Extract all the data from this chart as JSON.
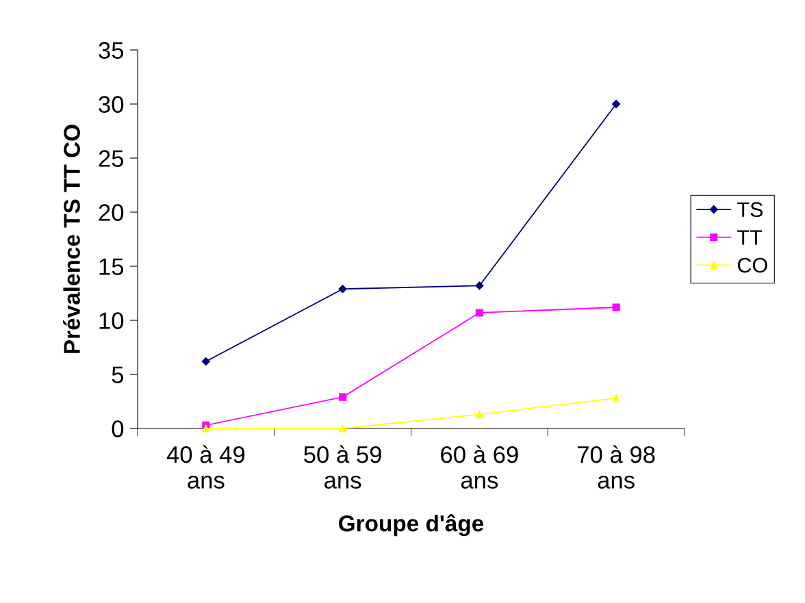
{
  "chart_data": {
    "type": "line",
    "xlabel": "Groupe d'âge",
    "ylabel": "Prévalence TS TT CO",
    "categories": [
      "40 à 49\nans",
      "50 à 59\nans",
      "60 à 69\nans",
      "70 à 98\nans"
    ],
    "series": [
      {
        "name": "TS",
        "color": "#000080",
        "marker": "diamond",
        "values": [
          6.2,
          12.9,
          13.2,
          30
        ]
      },
      {
        "name": "TT",
        "color": "#ff00ff",
        "marker": "square",
        "values": [
          0.3,
          2.9,
          10.7,
          11.2
        ]
      },
      {
        "name": "CO",
        "color": "#ffff00",
        "marker": "triangle",
        "values": [
          0,
          0,
          1.3,
          2.8
        ]
      }
    ],
    "ylim": [
      0,
      35
    ],
    "yticks": [
      0,
      5,
      10,
      15,
      20,
      25,
      30,
      35
    ],
    "grid": false,
    "legend": "right"
  }
}
